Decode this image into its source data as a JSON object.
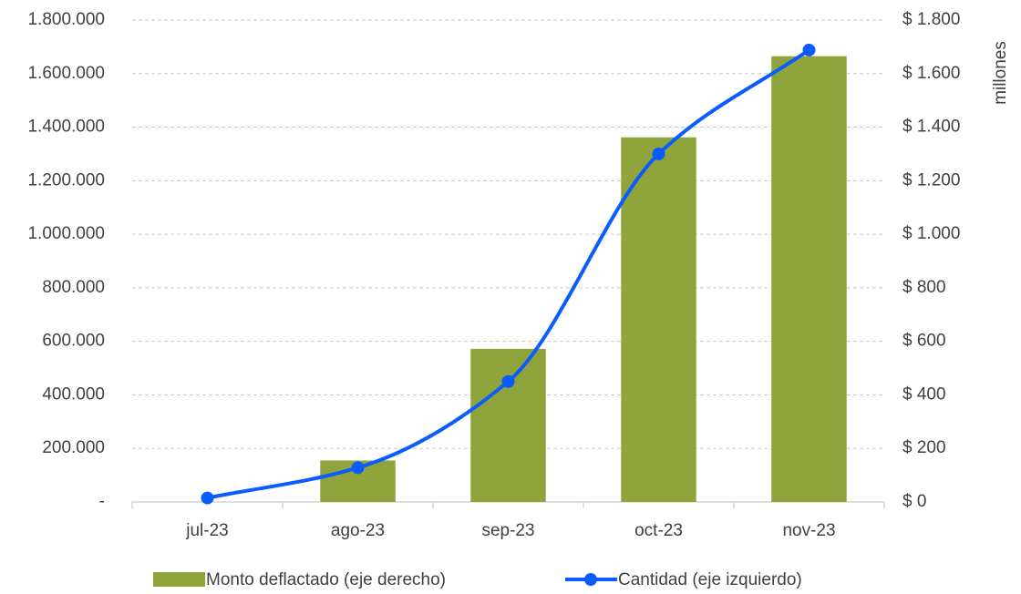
{
  "chart_data": {
    "type": "bar-line",
    "categories": [
      "jul-23",
      "ago-23",
      "sep-23",
      "oct-23",
      "nov-23"
    ],
    "series": [
      {
        "name": "Monto deflactado (eje derecho)",
        "type": "bar",
        "axis": "y2",
        "color": "#8fa53c",
        "values": [
          0,
          155,
          572,
          1362,
          1665
        ]
      },
      {
        "name": "Cantidad (eje izquierdo)",
        "type": "line",
        "color": "#0a5cff",
        "values": [
          15000,
          128000,
          450000,
          1300000,
          1688000
        ]
      }
    ],
    "ylim": [
      0,
      1800000
    ],
    "yticks": [
      {
        "value": 0,
        "label": "-"
      },
      {
        "value": 200000,
        "label": "200.000"
      },
      {
        "value": 400000,
        "label": "400.000"
      },
      {
        "value": 600000,
        "label": "600.000"
      },
      {
        "value": 800000,
        "label": "800.000"
      },
      {
        "value": 1000000,
        "label": "1.000.000"
      },
      {
        "value": 1200000,
        "label": "1.200.000"
      },
      {
        "value": 1400000,
        "label": "1.400.000"
      },
      {
        "value": 1600000,
        "label": "1.600.000"
      },
      {
        "value": 1800000,
        "label": "1.800.000"
      }
    ],
    "y2lim": [
      0,
      1800
    ],
    "y2ticks": [
      {
        "value": 0,
        "label": "$ 0"
      },
      {
        "value": 200,
        "label": "$ 200"
      },
      {
        "value": 400,
        "label": "$ 400"
      },
      {
        "value": 600,
        "label": "$ 600"
      },
      {
        "value": 800,
        "label": "$ 800"
      },
      {
        "value": 1000,
        "label": "$ 1.000"
      },
      {
        "value": 1200,
        "label": "$ 1.200"
      },
      {
        "value": 1400,
        "label": "$ 1.400"
      },
      {
        "value": 1600,
        "label": "$ 1.600"
      },
      {
        "value": 1800,
        "label": "$ 1.800"
      }
    ],
    "y2label": "millones",
    "grid": true,
    "legend": "bottom"
  }
}
